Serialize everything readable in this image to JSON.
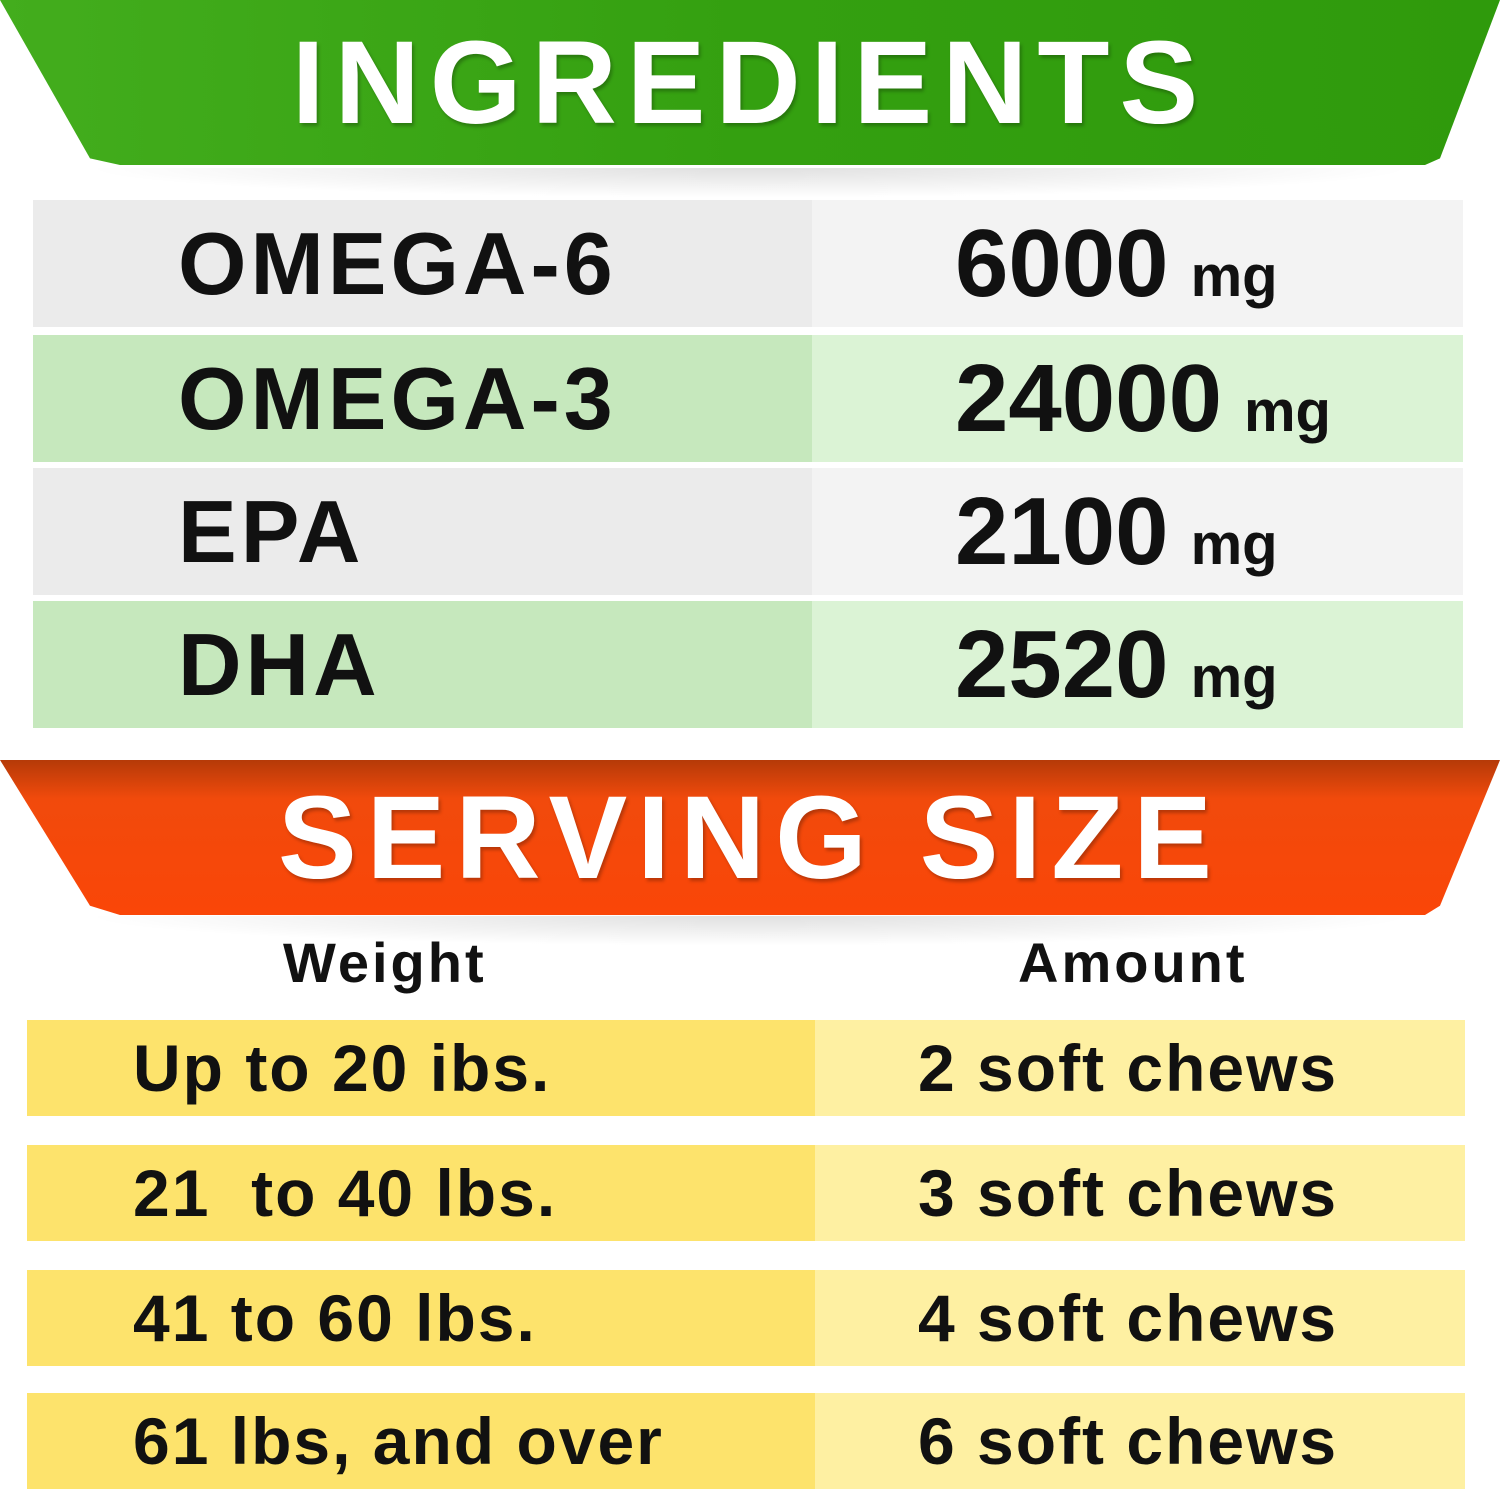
{
  "ingredients": {
    "title": "INGREDIENTS",
    "rows": [
      {
        "name": "OMEGA-6",
        "amount": "6000",
        "unit": "mg"
      },
      {
        "name": "OMEGA-3",
        "amount": "24000",
        "unit": "mg"
      },
      {
        "name": "EPA",
        "amount": "2100",
        "unit": "mg"
      },
      {
        "name": "DHA",
        "amount": "2520",
        "unit": "mg"
      }
    ]
  },
  "serving": {
    "title": "SERVING SIZE",
    "headers": {
      "weight": "Weight",
      "amount": "Amount"
    },
    "rows": [
      {
        "weight": "Up to 20 ibs.",
        "amount": "2 soft chews"
      },
      {
        "weight": "21  to 40 lbs.",
        "amount": "3 soft chews"
      },
      {
        "weight": "41 to 60 lbs.",
        "amount": "4 soft chews"
      },
      {
        "weight": "61 lbs, and over",
        "amount": "6 soft chews"
      }
    ]
  },
  "colors": {
    "green": "#34a010",
    "orange": "#fa4608",
    "yellow": "#fde36c",
    "light_yellow": "#fef0a2"
  }
}
